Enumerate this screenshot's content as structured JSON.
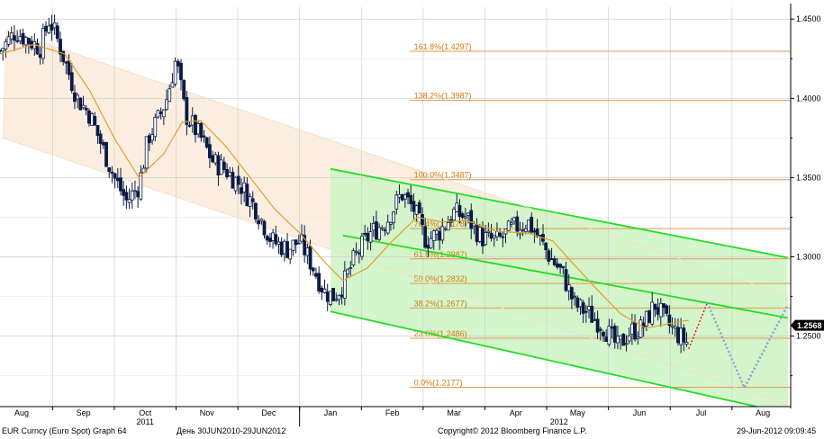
{
  "footer": {
    "left": "EUR Curncy (Euro Spot) Graph 64",
    "range": "День 30JUN2010-29JUN2012",
    "copyright": "Copyright© 2012 Bloomberg Finance L.P.",
    "timestamp": "29-Jun-2012 09:09:45"
  },
  "colors": {
    "candle": "#0b1a44",
    "moving_average": "#e0a030",
    "fib_line": "#e29a52",
    "fib_text": "#d07a12",
    "green_channel": "#22dd22",
    "green_fill": "#ccf5c4",
    "beige_channel": "#fbeee0",
    "grid": "#cfcfcf",
    "last_price_badge": "#000000",
    "projection_red": "#dd2222",
    "projection_blue": "#7fa6d8"
  },
  "chart_data": {
    "type": "candlestick",
    "instrument": "EUR Curncy (Euro Spot)",
    "period": "daily",
    "y_axis": {
      "ticks": [
        1.45,
        1.4,
        1.35,
        1.3,
        1.25
      ],
      "tick_labels": [
        "1.4500",
        "1.4000",
        "1.3500",
        "1.3000",
        "1.2500"
      ],
      "range": [
        1.2055,
        1.4575
      ]
    },
    "x_axis": {
      "month_labels": [
        "Aug",
        "Sep",
        "Oct",
        "Nov",
        "Dec",
        "Jan",
        "Feb",
        "Mar",
        "Apr",
        "May",
        "Jun",
        "Jul",
        "Aug"
      ],
      "month_positions": [
        0.6,
        1.6,
        2.6,
        3.6,
        4.6,
        5.6,
        6.6,
        7.6,
        8.6,
        9.6,
        10.6,
        11.6,
        12.6
      ],
      "year_labels": [
        {
          "text": "2011",
          "pos": 2.6
        },
        {
          "text": "2012",
          "pos": 9.3
        }
      ],
      "range": [
        0.25,
        13.05
      ],
      "unit": "months since Aug 2011 (0 = start of Aug 2011)"
    },
    "last_price": {
      "label": "1.2568",
      "value": 1.2568
    },
    "fibonacci": [
      {
        "label": "161.8%(1.4297)",
        "value": 1.4297
      },
      {
        "label": "138.2%(1.3987)",
        "value": 1.3987
      },
      {
        "label": "100.0%(1.3487)",
        "value": 1.3487
      },
      {
        "label": "76.4%(1.3178)",
        "value": 1.3178
      },
      {
        "label": "61.8%(1.2987)",
        "value": 1.2987
      },
      {
        "label": "50.0%(1.2832)",
        "value": 1.2832
      },
      {
        "label": "38.2%(1.2677)",
        "value": 1.2677
      },
      {
        "label": "23.6%(1.2486)",
        "value": 1.2486
      },
      {
        "label": "0.0%(1.2177)",
        "value": 1.2177
      }
    ],
    "price_path": [
      [
        0.25,
        1.43
      ],
      [
        0.5,
        1.442
      ],
      [
        0.9,
        1.432
      ],
      [
        1.05,
        1.45
      ],
      [
        1.2,
        1.435
      ],
      [
        1.5,
        1.4
      ],
      [
        1.7,
        1.39
      ],
      [
        1.9,
        1.37
      ],
      [
        2.1,
        1.35
      ],
      [
        2.3,
        1.335
      ],
      [
        2.5,
        1.345
      ],
      [
        2.65,
        1.375
      ],
      [
        2.85,
        1.39
      ],
      [
        2.95,
        1.4
      ],
      [
        3.1,
        1.425
      ],
      [
        3.25,
        1.39
      ],
      [
        3.5,
        1.375
      ],
      [
        3.7,
        1.36
      ],
      [
        3.9,
        1.355
      ],
      [
        4.15,
        1.345
      ],
      [
        4.4,
        1.33
      ],
      [
        4.65,
        1.31
      ],
      [
        4.9,
        1.305
      ],
      [
        5.1,
        1.31
      ],
      [
        5.3,
        1.295
      ],
      [
        5.5,
        1.278
      ],
      [
        5.65,
        1.275
      ],
      [
        5.8,
        1.282
      ],
      [
        6.0,
        1.3
      ],
      [
        6.25,
        1.315
      ],
      [
        6.5,
        1.322
      ],
      [
        6.75,
        1.34
      ],
      [
        6.95,
        1.33
      ],
      [
        7.15,
        1.31
      ],
      [
        7.35,
        1.315
      ],
      [
        7.6,
        1.328
      ],
      [
        7.8,
        1.325
      ],
      [
        8.05,
        1.312
      ],
      [
        8.3,
        1.31
      ],
      [
        8.55,
        1.318
      ],
      [
        8.8,
        1.322
      ],
      [
        9.0,
        1.31
      ],
      [
        9.15,
        1.3
      ],
      [
        9.35,
        1.29
      ],
      [
        9.55,
        1.27
      ],
      [
        9.75,
        1.265
      ],
      [
        10.0,
        1.257
      ],
      [
        10.25,
        1.243
      ],
      [
        10.45,
        1.253
      ],
      [
        10.65,
        1.255
      ],
      [
        10.85,
        1.27
      ],
      [
        11.05,
        1.258
      ],
      [
        11.25,
        1.25
      ],
      [
        11.4,
        1.245
      ]
    ],
    "moving_average": [
      [
        0.25,
        1.428
      ],
      [
        0.8,
        1.434
      ],
      [
        1.3,
        1.428
      ],
      [
        1.7,
        1.405
      ],
      [
        2.1,
        1.375
      ],
      [
        2.5,
        1.35
      ],
      [
        2.9,
        1.365
      ],
      [
        3.2,
        1.385
      ],
      [
        3.5,
        1.386
      ],
      [
        3.9,
        1.37
      ],
      [
        4.3,
        1.35
      ],
      [
        4.7,
        1.33
      ],
      [
        5.1,
        1.315
      ],
      [
        5.5,
        1.297
      ],
      [
        5.8,
        1.285
      ],
      [
        6.2,
        1.293
      ],
      [
        6.6,
        1.31
      ],
      [
        7.0,
        1.325
      ],
      [
        7.4,
        1.322
      ],
      [
        7.8,
        1.323
      ],
      [
        8.3,
        1.316
      ],
      [
        8.8,
        1.315
      ],
      [
        9.2,
        1.31
      ],
      [
        9.5,
        1.297
      ],
      [
        9.9,
        1.28
      ],
      [
        10.3,
        1.264
      ],
      [
        10.7,
        1.255
      ],
      [
        11.1,
        1.258
      ],
      [
        11.4,
        1.26
      ]
    ],
    "channels": {
      "green_upper": [
        [
          5.6,
          1.3555
        ],
        [
          13.0,
          1.2995
        ]
      ],
      "green_middle": [
        [
          5.8,
          1.3135
        ],
        [
          13.0,
          1.2615
        ]
      ],
      "green_lower": [
        [
          5.6,
          1.2655
        ],
        [
          12.5,
          1.2055
        ]
      ],
      "beige_upper": [
        [
          0.35,
          1.443
        ],
        [
          13.0,
          1.2755
        ]
      ],
      "beige_lower": [
        [
          0.3,
          1.375
        ],
        [
          13.0,
          1.2065
        ]
      ]
    },
    "projections": {
      "red": [
        [
          11.4,
          1.242
        ],
        [
          11.7,
          1.271
        ]
      ],
      "blue": [
        [
          11.7,
          1.271
        ],
        [
          12.3,
          1.2175
        ],
        [
          13.0,
          1.2695
        ]
      ]
    }
  }
}
